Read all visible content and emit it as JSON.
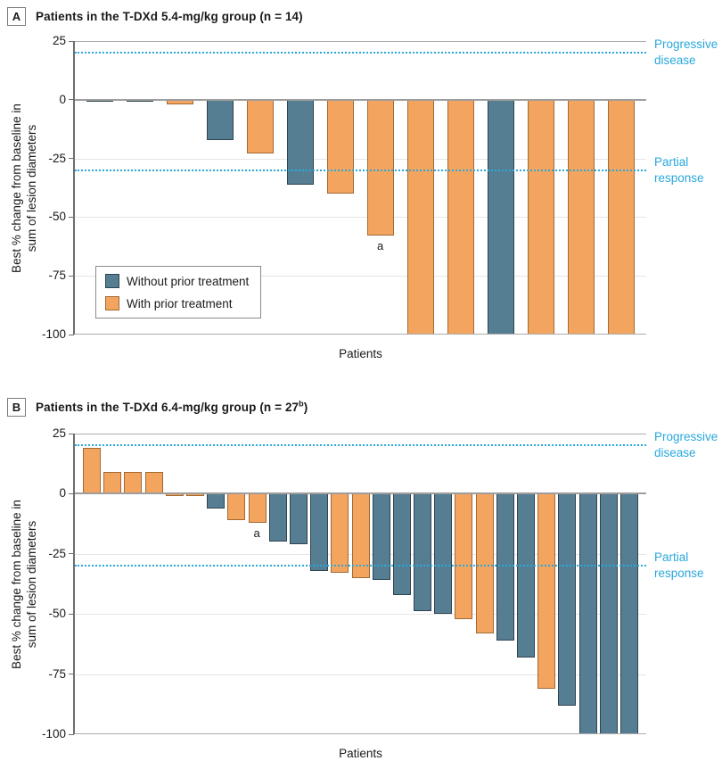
{
  "figure": {
    "background": "#ffffff",
    "colors": {
      "without_prior_treatment_fill": "#567e92",
      "without_prior_treatment_border": "#2f4450",
      "with_prior_treatment_fill": "#f3a55f",
      "with_prior_treatment_border": "#a06a35",
      "reference_line": "#29a8dc",
      "axis_line": "#6e6e6e",
      "frame_line": "#ababab",
      "gridline": "#e5e5e5",
      "text": "#1a1a1a"
    },
    "legend": {
      "items": [
        {
          "group": "without",
          "label": "Without prior treatment"
        },
        {
          "group": "with",
          "label": "With prior treatment"
        }
      ]
    }
  },
  "panels": [
    {
      "letter": "A",
      "title_pre": "Patients in the T-DXd 5.4-mg/kg group (n = 14",
      "title_sup": "",
      "title_post": ")"
    },
    {
      "letter": "B",
      "title_pre": "Patients in the T-DXd 6.4-mg/kg group (n = 27",
      "title_sup": "b",
      "title_post": ")"
    }
  ],
  "chart_data": [
    {
      "type": "bar",
      "subtype": "waterfall",
      "panel": "A",
      "title": "Patients in the T-DXd 5.4-mg/kg group (n = 14)",
      "xlabel": "Patients",
      "ylabel_lines": [
        "Best % change from baseline in",
        "sum of lesion diameters"
      ],
      "ylim": [
        -100,
        25
      ],
      "yticks": [
        25,
        0,
        -25,
        -50,
        -75,
        -100
      ],
      "grid": "horizontal-light",
      "legend_position": "bottom-left-inside",
      "reference_lines": [
        {
          "y": 20,
          "label_lines": [
            "Progressive",
            "disease"
          ]
        },
        {
          "y": -30,
          "label_lines": [
            "Partial",
            "response"
          ]
        }
      ],
      "bars": [
        {
          "value": -1,
          "group": "without"
        },
        {
          "value": -1,
          "group": "without"
        },
        {
          "value": -2,
          "group": "with"
        },
        {
          "value": -17,
          "group": "without"
        },
        {
          "value": -23,
          "group": "with"
        },
        {
          "value": -36,
          "group": "without"
        },
        {
          "value": -40,
          "group": "with"
        },
        {
          "value": -58,
          "group": "with"
        },
        {
          "value": -100,
          "group": "with"
        },
        {
          "value": -100,
          "group": "with"
        },
        {
          "value": -100,
          "group": "without"
        },
        {
          "value": -100,
          "group": "with"
        },
        {
          "value": -100,
          "group": "with"
        },
        {
          "value": -100,
          "group": "with"
        }
      ],
      "annotations": [
        {
          "bar_index": 7,
          "text": "a"
        }
      ]
    },
    {
      "type": "bar",
      "subtype": "waterfall",
      "panel": "B",
      "title": "Patients in the T-DXd 6.4-mg/kg group (n = 27b)",
      "xlabel": "Patients",
      "ylabel_lines": [
        "Best % change from baseline in",
        "sum of lesion diameters"
      ],
      "ylim": [
        -100,
        25
      ],
      "yticks": [
        25,
        0,
        -25,
        -50,
        -75,
        -100
      ],
      "grid": "horizontal-light",
      "reference_lines": [
        {
          "y": 20,
          "label_lines": [
            "Progressive",
            "disease"
          ]
        },
        {
          "y": -30,
          "label_lines": [
            "Partial",
            "response"
          ]
        }
      ],
      "bars": [
        {
          "value": 19,
          "group": "with"
        },
        {
          "value": 9,
          "group": "with"
        },
        {
          "value": 9,
          "group": "with"
        },
        {
          "value": 9,
          "group": "with"
        },
        {
          "value": -1,
          "group": "with"
        },
        {
          "value": -1,
          "group": "with"
        },
        {
          "value": -6,
          "group": "without"
        },
        {
          "value": -11,
          "group": "with"
        },
        {
          "value": -12,
          "group": "with"
        },
        {
          "value": -20,
          "group": "without"
        },
        {
          "value": -21,
          "group": "without"
        },
        {
          "value": -32,
          "group": "without"
        },
        {
          "value": -33,
          "group": "with"
        },
        {
          "value": -35,
          "group": "with"
        },
        {
          "value": -36,
          "group": "without"
        },
        {
          "value": -42,
          "group": "without"
        },
        {
          "value": -49,
          "group": "without"
        },
        {
          "value": -50,
          "group": "without"
        },
        {
          "value": -52,
          "group": "with"
        },
        {
          "value": -58,
          "group": "with"
        },
        {
          "value": -61,
          "group": "without"
        },
        {
          "value": -68,
          "group": "without"
        },
        {
          "value": -81,
          "group": "with"
        },
        {
          "value": -88,
          "group": "without"
        },
        {
          "value": -100,
          "group": "without"
        },
        {
          "value": -100,
          "group": "without"
        },
        {
          "value": -100,
          "group": "without"
        }
      ],
      "annotations": [
        {
          "bar_index": 8,
          "text": "a"
        }
      ]
    }
  ]
}
